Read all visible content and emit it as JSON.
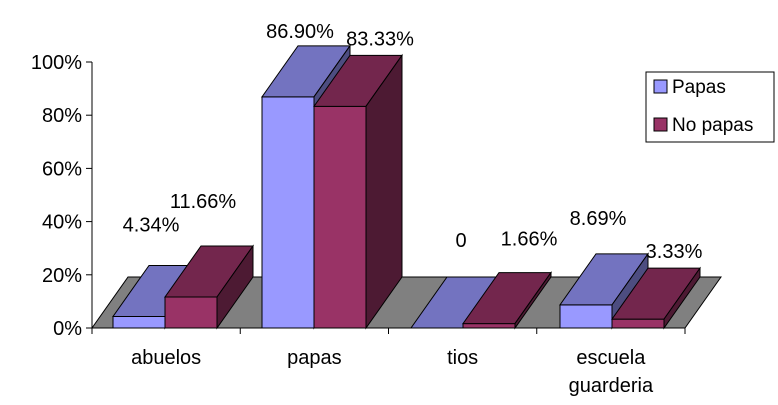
{
  "chart_data": {
    "type": "bar",
    "categories": [
      "abuelos",
      "papas",
      "tios",
      "escuela guarderia"
    ],
    "category_lines": [
      [
        "abuelos"
      ],
      [
        "papas"
      ],
      [
        "tios"
      ],
      [
        "escuela",
        "guarderia"
      ]
    ],
    "series": [
      {
        "name": "Papas",
        "values": [
          4.34,
          86.9,
          0,
          8.69
        ],
        "labels": [
          "4.34%",
          "86.90%",
          "0",
          "8.69%"
        ],
        "front_color": "#9999ff",
        "top_color": "#7373c0",
        "side_color": "#4d4d80"
      },
      {
        "name": "No papas",
        "values": [
          11.66,
          83.33,
          1.66,
          3.33
        ],
        "labels": [
          "11.66%",
          "83.33%",
          "1.66%",
          "3.33%"
        ],
        "front_color": "#993366",
        "top_color": "#73264d",
        "side_color": "#4d1a33"
      }
    ],
    "y_ticks": [
      "0%",
      "20%",
      "40%",
      "60%",
      "80%",
      "100%"
    ],
    "ylim": [
      0,
      100
    ],
    "floor_color": "#808080",
    "legend_position": "right"
  }
}
